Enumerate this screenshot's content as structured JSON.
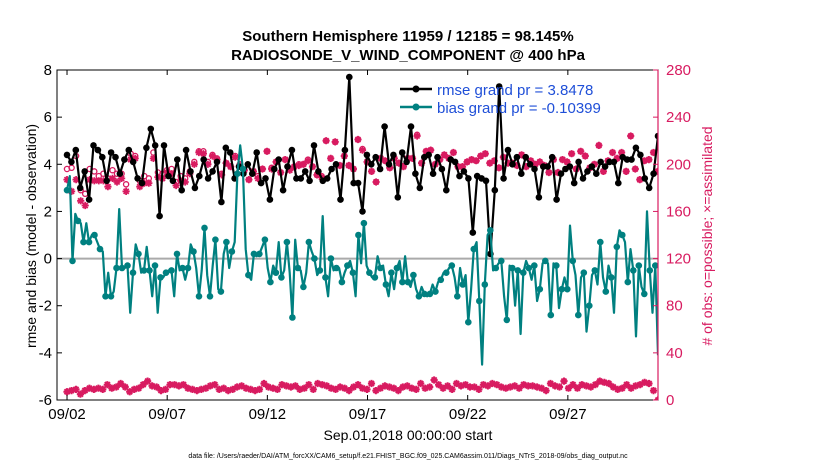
{
  "chart_data": {
    "type": "line",
    "title": "Southern Hemisphere 11959 / 12185 = 98.145%",
    "subtitle": "RADIOSONDE_V_WIND_COMPONENT @ 400 hPa",
    "xlabel": "Sep.01,2018 00:00:00 start",
    "ylabel": "rmse and bias (model - observation)",
    "y2label": "# of obs: o=possible; ×=assimilated",
    "footnote": "data file: /Users/raeder/DAI/ATM_forcXX/CAM6_setup/f.e21.FHIST_BGC.f09_025.CAM6assim.011/Diags_NTrS_2018-09/obs_diag_output.nc",
    "xlim": [
      1.5,
      31.5
    ],
    "ylim": [
      -6,
      8
    ],
    "y2lim": [
      0,
      280
    ],
    "xticks": [
      2,
      7,
      12,
      17,
      22,
      27
    ],
    "xtick_labels": [
      "09/02",
      "09/07",
      "09/12",
      "09/17",
      "09/22",
      "09/27"
    ],
    "yticks": [
      -6,
      -4,
      -2,
      0,
      2,
      4,
      6,
      8
    ],
    "ytick_labels": [
      "-6",
      "-4",
      "-2",
      "0",
      "2",
      "4",
      "6",
      "8"
    ],
    "y2ticks": [
      0,
      40,
      80,
      120,
      160,
      200,
      240,
      280
    ],
    "y2tick_labels": [
      "0",
      "40",
      "80",
      "120",
      "160",
      "200",
      "240",
      "280"
    ],
    "legend_position": "top-right",
    "colors": {
      "rmse": "#000000",
      "bias": "#008080",
      "obs": "#d81b60",
      "zero_line": "#aaaaaa"
    },
    "series": [
      {
        "name": "rmse grand pr = 3.8478",
        "legend": "rmse grand pr = 3.8478",
        "values": [
          4.4,
          4.1,
          4.6,
          3.0,
          3.7,
          2.5,
          4.8,
          4.6,
          4.3,
          3.3,
          4.5,
          4.3,
          3.6,
          4.2,
          4.6,
          4.1,
          3.4,
          3.2,
          4.7,
          5.5,
          4.8,
          1.8,
          4.8,
          3.5,
          3.3,
          4.2,
          2.9,
          4.6,
          3.7,
          3.0,
          3.5,
          4.2,
          3.4,
          3.7,
          4.1,
          2.4,
          4.7,
          4.5,
          3.4,
          3.9,
          3.6,
          4.0,
          3.6,
          4.5,
          3.2,
          3.4,
          2.5,
          3.8,
          4.2,
          2.9,
          3.9,
          4.6,
          3.4,
          3.4,
          3.7,
          3.3,
          4.8,
          3.7,
          3.3,
          3.4,
          3.8,
          4.0,
          2.5,
          4.6,
          7.7,
          3.2,
          3.2,
          2.0,
          4.4,
          4.0,
          4.3,
          3.8,
          5.6,
          4.0,
          4.4,
          2.6,
          4.5,
          4.1,
          5.6,
          3.6,
          3.0,
          4.3,
          4.4,
          3.6,
          4.3,
          3.8,
          2.9,
          4.2,
          4.1,
          3.5,
          3.7,
          3.4,
          1.1,
          3.5,
          3.4,
          3.3,
          0.2,
          2.9,
          7.3,
          3.4,
          4.6,
          4.0,
          4.3,
          3.6,
          4.3,
          4.0,
          3.8,
          2.6,
          3.9,
          3.9,
          4.3,
          2.5,
          3.6,
          3.8,
          3.9,
          3.2,
          4.1,
          3.4,
          3.7,
          3.9,
          3.6,
          4.1,
          3.9,
          4.1,
          4.1,
          3.2,
          4.3,
          4.2,
          4.2,
          4.7,
          4.4,
          3.4,
          3.0,
          3.6,
          5.2
        ]
      },
      {
        "name": "bias grand pr = -0.10399",
        "legend": "bias grand pr = -0.10399",
        "values": [
          2.9,
          3.5,
          -0.1,
          1.9,
          1.6,
          1.5,
          0.7,
          1.5,
          0.7,
          1.0,
          1.0,
          0.7,
          0.4,
          0.3,
          -1.6,
          -0.6,
          -1.6,
          -1.4,
          -0.4,
          2.1,
          -0.4,
          -0.4,
          -0.3,
          -2.3,
          -0.6,
          0.6,
          0.2,
          -0.6,
          -0.5,
          0.5,
          -0.5,
          -1.6,
          -0.3,
          -2.3,
          -0.8,
          -0.8,
          -0.6,
          -0.5,
          -0.5,
          -1.6,
          0.2,
          -0.5,
          -0.4,
          -0.9,
          -0.4,
          0.6,
          0.3,
          -0.4,
          -1.6,
          -0.5,
          1.3,
          -0.7,
          -1.6,
          -0.3,
          0.8,
          -1.3,
          -1.4,
          0.2,
          0.7,
          -0.4,
          0.3,
          0.7,
          3.6,
          4.8,
          3.8,
          0.4,
          -0.7,
          -0.9,
          0.2,
          0.1,
          0.2,
          0.5,
          0.8,
          -0.4,
          -1.0,
          -0.3,
          -0.6,
          0.7,
          -0.8,
          -0.5,
          0.7,
          -0.6,
          -2.5,
          0.8,
          -0.4,
          -0.5,
          -1.2,
          -0.6,
          0.7,
          0.3,
          0.0,
          -0.7,
          -0.5,
          1.8,
          -0.8,
          -1.6,
          0.0,
          -0.5,
          -0.4,
          -0.4,
          -1.0,
          -0.6,
          -0.3,
          -0.1,
          -0.6,
          -1.6,
          1.0,
          -0.2,
          1.5,
          -0.3,
          -0.6,
          -0.8,
          -0.8,
          0.1,
          -0.4,
          -0.3,
          -1.1,
          -1.6,
          -0.6,
          -1.3,
          -0.4,
          -0.1,
          -1.0,
          0.1,
          -1.0,
          -1.2,
          -0.7,
          -1.3,
          -1.6,
          -1.2,
          -1.5,
          -1.6,
          -1.5,
          -1.1,
          -1.4,
          -1.0,
          -0.9,
          -0.6,
          -0.6,
          -0.4,
          -0.3,
          -0.8,
          -1.6,
          -0.4,
          -1.1,
          -0.7,
          -2.7,
          -1.3,
          0.4,
          0.7,
          -1.8,
          -4.5,
          -1.1,
          1.0,
          1.2,
          -0.5,
          -0.4,
          -0.2,
          -0.1,
          -1.6,
          -2.6,
          -0.3,
          -0.4,
          -2.0,
          -0.5,
          -3.2,
          -0.6,
          -0.1,
          -0.4,
          -0.9,
          -0.3,
          -1.8,
          -1.3,
          -0.2,
          -0.1,
          -0.2,
          -2.4,
          -0.2,
          -0.3,
          -2.1,
          -1.3,
          -0.8,
          -1.3,
          1.4,
          -0.1,
          -0.7,
          -2.4,
          -0.8,
          -0.6,
          -3.1,
          -2.0,
          -0.7,
          -0.5,
          -1.1,
          0.7,
          -0.8,
          -1.4,
          -0.3,
          -0.8,
          -2.3,
          0.5,
          1.2,
          1.0,
          0.7,
          -1.0,
          0.4,
          -0.5,
          -3.3,
          -0.3,
          -1.2,
          -1.5,
          2.0,
          -0.5,
          -2.3,
          -0.3,
          -4.1
        ]
      }
    ],
    "obs_possible": [
      196,
      197,
      207,
      178,
      175,
      196,
      194,
      190,
      192,
      188,
      195,
      192,
      192,
      183,
      209,
      207,
      186,
      190,
      188,
      210,
      193,
      192,
      195,
      196,
      185,
      190,
      188,
      194,
      202,
      211,
      211,
      202,
      208,
      205,
      192,
      201,
      198,
      207,
      200,
      195,
      187,
      194,
      190,
      196,
      211,
      197,
      202,
      193,
      204,
      196,
      198,
      200,
      200,
      204,
      198,
      191,
      190,
      220,
      205,
      219,
      199,
      207,
      199,
      196,
      221,
      213,
      202,
      194,
      185,
      205,
      203,
      197,
      205,
      201,
      198,
      205,
      205,
      225,
      201,
      211,
      212,
      200,
      204,
      208,
      205,
      210,
      198,
      198,
      202,
      204,
      203,
      207,
      209,
      201,
      203,
      197,
      206,
      201,
      201,
      199,
      208,
      198,
      203,
      200,
      202,
      199,
      193,
      204,
      193,
      204,
      202,
      209,
      196,
      211,
      207,
      197,
      200,
      216,
      194,
      203,
      210,
      205,
      210,
      194,
      224,
      196,
      187,
      203,
      204,
      210,
      194
    ],
    "obs_assimilated": [
      187,
      177,
      187,
      169,
      165,
      187,
      186,
      186,
      186,
      181,
      188,
      185,
      188,
      177,
      204,
      205,
      181,
      184,
      184,
      205,
      189,
      188,
      193,
      192,
      182,
      186,
      185,
      192,
      200,
      210,
      209,
      200,
      207,
      204,
      191,
      201,
      198,
      206,
      199,
      195,
      187,
      194,
      188,
      196,
      211,
      196,
      202,
      193,
      204,
      195,
      198,
      199,
      200,
      203,
      198,
      191,
      189,
      220,
      205,
      219,
      199,
      207,
      199,
      196,
      221,
      212,
      202,
      194,
      185,
      205,
      203,
      197,
      205,
      201,
      198,
      205,
      205,
      224,
      201,
      211,
      212,
      200,
      204,
      208,
      205,
      210,
      198,
      198,
      202,
      204,
      203,
      207,
      209,
      201,
      203,
      197,
      206,
      201,
      201,
      199,
      208,
      198,
      203,
      200,
      202,
      199,
      193,
      204,
      193,
      204,
      202,
      209,
      196,
      211,
      207,
      197,
      200,
      216,
      194,
      203,
      210,
      205,
      210,
      194,
      224,
      196,
      187,
      203,
      204,
      210,
      194
    ],
    "obs_bottom": [
      7,
      8,
      9,
      5,
      8,
      10,
      9,
      10,
      9,
      13,
      10,
      11,
      14,
      11,
      7,
      9,
      10,
      13,
      16,
      12,
      11,
      8,
      9,
      13,
      13,
      12,
      13,
      10,
      9,
      8,
      9,
      10,
      12,
      13,
      9,
      10,
      8,
      9,
      11,
      12,
      10,
      9,
      8,
      9,
      14,
      11,
      10,
      9,
      13,
      12,
      11,
      12,
      9,
      10,
      13,
      9,
      14,
      13,
      12,
      10,
      9,
      11,
      10,
      8,
      11,
      13,
      10,
      9,
      14,
      8,
      10,
      12,
      11,
      10,
      8,
      11,
      12,
      10,
      9,
      14,
      10,
      11,
      17,
      13,
      10,
      12,
      9,
      14,
      12,
      13,
      11,
      11,
      9,
      13,
      12,
      14,
      13,
      11,
      10,
      11,
      12,
      10,
      13,
      12,
      12,
      11,
      10,
      8,
      14,
      12,
      11,
      16,
      10,
      13,
      10,
      13,
      12,
      11,
      13,
      16,
      15,
      14,
      11,
      9,
      10,
      13,
      10,
      12,
      13,
      15,
      14,
      8,
      0
    ]
  }
}
